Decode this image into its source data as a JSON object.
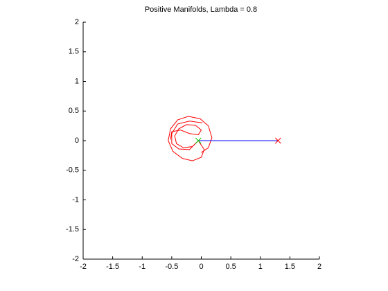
{
  "chart_data": {
    "type": "line",
    "title": "Positive Manifolds, Lambda = 0.8",
    "xlim": [
      -2,
      2
    ],
    "ylim": [
      -2,
      2
    ],
    "xticks": [
      -2,
      -1.5,
      -1,
      -0.5,
      0,
      0.5,
      1,
      1.5,
      2
    ],
    "yticks": [
      -2,
      -1.5,
      -1,
      -0.5,
      0,
      0.5,
      1,
      1.5,
      2
    ],
    "grid": false,
    "series": [
      {
        "color": "#ff0000",
        "marker": "none",
        "x": [
          -0.05,
          0.05,
          0.0,
          -0.15,
          -0.32,
          -0.48,
          -0.56,
          -0.52,
          -0.4,
          -0.22,
          -0.02,
          0.12,
          0.18,
          0.12,
          0.0
        ],
        "values": [
          0,
          -0.15,
          -0.28,
          -0.34,
          -0.3,
          -0.18,
          0.0,
          0.2,
          0.35,
          0.41,
          0.37,
          0.25,
          0.05,
          -0.12,
          -0.2
        ]
      },
      {
        "color": "#ff0000",
        "marker": "none",
        "x": [
          -0.05,
          -0.15,
          -0.3,
          -0.42,
          -0.45,
          -0.38,
          -0.25,
          -0.1,
          0.0,
          -0.05,
          -0.2,
          -0.35,
          -0.5,
          -0.52
        ],
        "values": [
          0,
          -0.1,
          -0.12,
          -0.05,
          0.08,
          0.2,
          0.27,
          0.26,
          0.18,
          0.1,
          0.12,
          0.18,
          0.15,
          0.02
        ]
      },
      {
        "color": "#ff0000",
        "marker": "none",
        "x": [
          -0.05,
          -0.2,
          -0.38,
          -0.5,
          -0.5,
          -0.4,
          -0.2,
          0.02
        ],
        "values": [
          0,
          -0.15,
          -0.14,
          -0.05,
          0.12,
          0.28,
          0.33,
          0.3
        ]
      },
      {
        "color": "#0000ff",
        "marker": "none",
        "x": [
          -0.05,
          1.3
        ],
        "values": [
          0,
          0
        ]
      },
      {
        "color": "#ff0000",
        "marker": "x",
        "x": [
          1.3
        ],
        "values": [
          0
        ]
      },
      {
        "color": "#00cc00",
        "marker": "x",
        "x": [
          -0.05
        ],
        "values": [
          0
        ]
      }
    ]
  }
}
